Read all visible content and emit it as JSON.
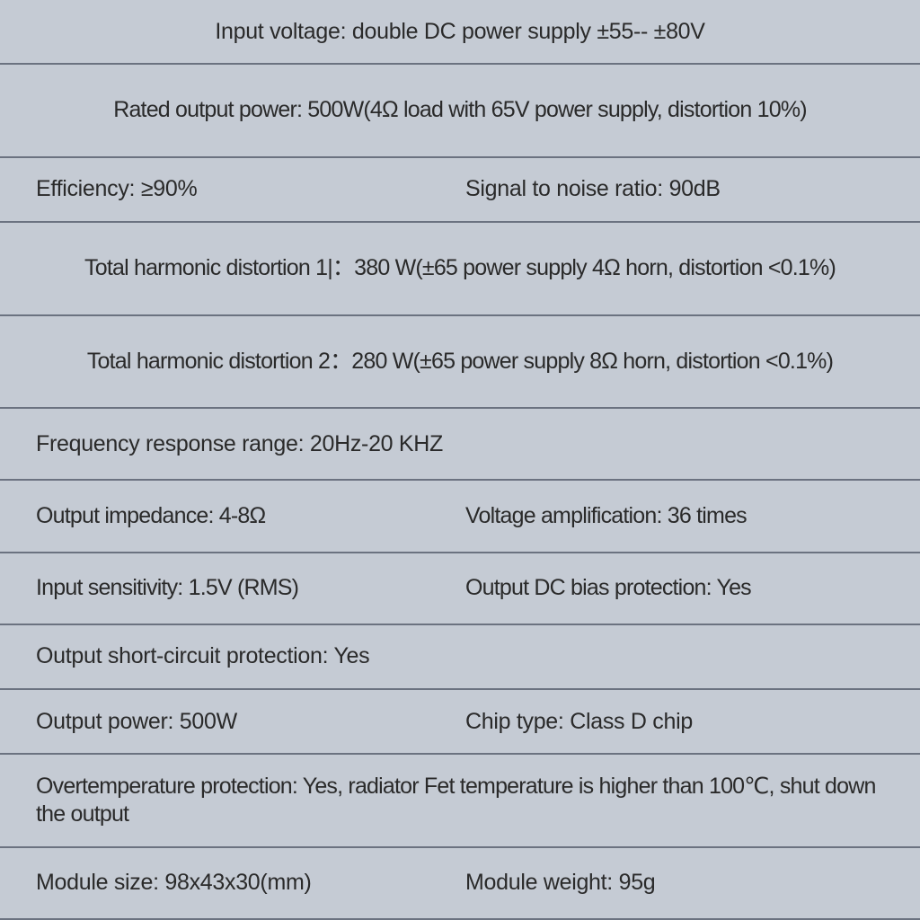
{
  "background_color": "#c5cbd4",
  "divider_color": "#6b7280",
  "text_color": "#2a2a2a",
  "font_size": 25,
  "rows": [
    {
      "type": "single-center",
      "text": "Input voltage: double DC power supply ±55-- ±80V"
    },
    {
      "type": "single-center",
      "text": "Rated output power: 500W(4Ω load with 65V power supply, distortion 10%)"
    },
    {
      "type": "two-col",
      "left": "Efficiency: ≥90%",
      "right": "Signal to noise ratio: 90dB"
    },
    {
      "type": "single-center",
      "text": "Total harmonic distortion 1|：380 W(±65 power supply 4Ω horn, distortion <0.1%)"
    },
    {
      "type": "single-center",
      "text": "Total harmonic distortion 2：280 W(±65 power supply 8Ω horn, distortion <0.1%)"
    },
    {
      "type": "single-left",
      "text": "Frequency response range: 20Hz-20 KHZ"
    },
    {
      "type": "two-col",
      "left": "Output impedance: 4-8Ω",
      "right": "Voltage amplification: 36 times"
    },
    {
      "type": "two-col",
      "left": "Input sensitivity: 1.5V (RMS)",
      "right": "Output DC bias protection: Yes"
    },
    {
      "type": "single-left",
      "text": "Output short-circuit protection: Yes"
    },
    {
      "type": "two-col",
      "left": "Output power: 500W",
      "right": "Chip type: Class D chip"
    },
    {
      "type": "single-left",
      "text": "Overtemperature protection: Yes, radiator Fet temperature is higher than 100℃, shut down the output"
    },
    {
      "type": "two-col",
      "left": "Module size: 98x43x30(mm)",
      "right": "Module weight: 95g"
    }
  ]
}
